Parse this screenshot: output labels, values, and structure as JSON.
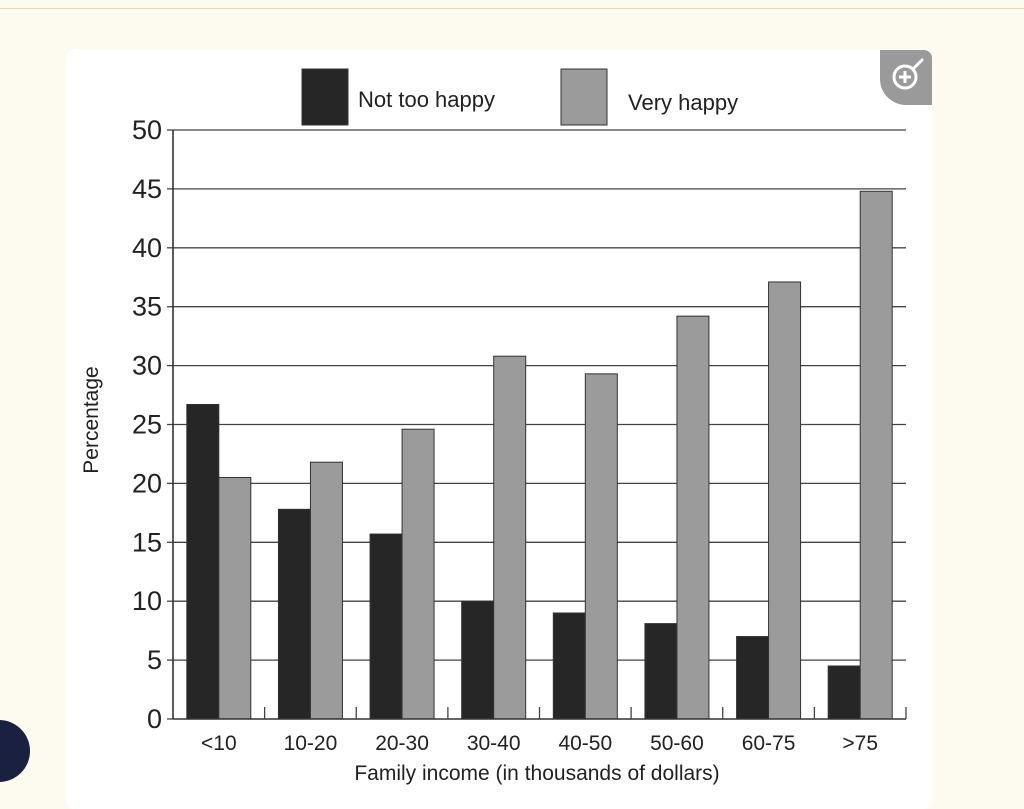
{
  "chart_data": {
    "type": "bar",
    "title": "",
    "xlabel": "Family income (in thousands of dollars)",
    "ylabel": "Percentage",
    "ylim": [
      0,
      50
    ],
    "yticks": [
      0,
      5,
      10,
      15,
      20,
      25,
      30,
      35,
      40,
      45,
      50
    ],
    "grid": true,
    "legend_position": "top",
    "categories": [
      "<10",
      "10-20",
      "20-30",
      "30-40",
      "40-50",
      "50-60",
      "60-75",
      ">75"
    ],
    "series": [
      {
        "name": "Not too happy",
        "color": "#262626",
        "values": [
          26.7,
          17.8,
          15.7,
          10.0,
          9.0,
          8.1,
          7.0,
          4.5
        ]
      },
      {
        "name": "Very happy",
        "color": "#9b9b9b",
        "values": [
          20.5,
          21.8,
          24.6,
          30.8,
          29.3,
          34.2,
          37.1,
          44.8
        ]
      }
    ]
  },
  "ui": {
    "zoom_icon": "zoom-in-icon",
    "fab_icon": "chat-bubble-icon"
  }
}
